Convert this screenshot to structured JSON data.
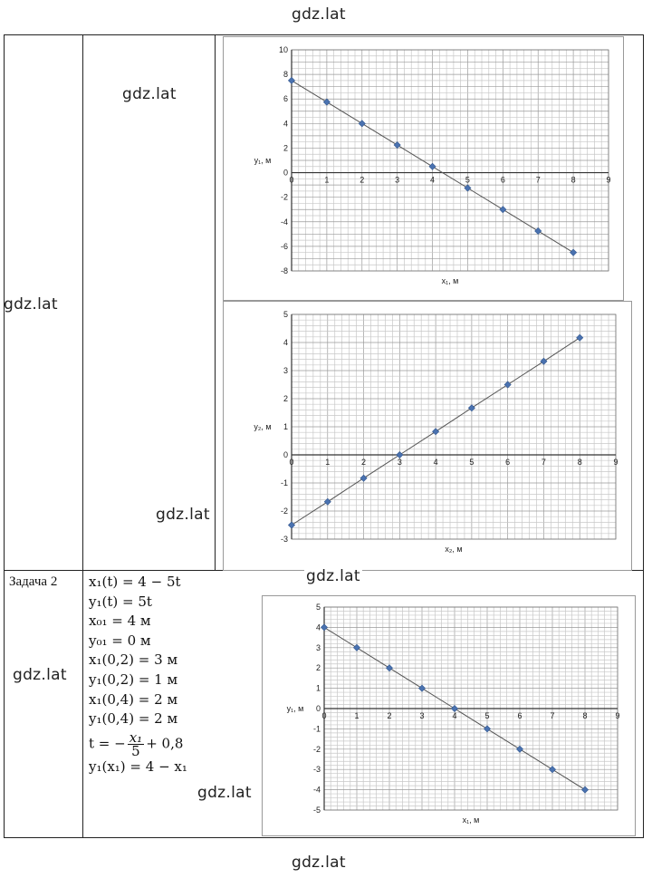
{
  "watermarks": {
    "top": "gdz.lat",
    "bottom": "gdz.lat",
    "r1_col2": "gdz.lat",
    "r1_col1": "gdz.lat",
    "r1_col2b": "gdz.lat",
    "mid": "gdz.lat",
    "r2_col1": "gdz.lat",
    "r2_col2": "gdz.lat"
  },
  "row2": {
    "task_label": "Задача 2",
    "formulas": [
      "x₁(t) = 4 − 5t",
      "y₁(t) = 5t",
      "x₀₁ = 4 м",
      "y₀₁ = 0 м",
      "x₁(0,2) = 3 м",
      "y₁(0,2) = 1 м",
      "x₁(0,4) = 2 м",
      "y₁(0,4) = 2 м"
    ],
    "t_formula": {
      "lhs": "t = −",
      "num": "x₁",
      "den": "5",
      "rhs": "+ 0,8"
    },
    "last_formula": "y₁(x₁) = 4 − x₁"
  },
  "chart_data": [
    {
      "type": "line",
      "xlabel": "x₁, м",
      "ylabel": "y₁, м",
      "xlim": [
        0,
        9
      ],
      "ylim": [
        -8,
        10
      ],
      "xticks": [
        0,
        1,
        2,
        3,
        4,
        5,
        6,
        7,
        8,
        9
      ],
      "yticks": [
        -8,
        -6,
        -4,
        -2,
        0,
        2,
        4,
        6,
        8,
        10
      ],
      "grid": true,
      "series": [
        {
          "x": [
            0,
            1,
            2,
            3,
            4,
            5,
            6,
            7,
            8
          ],
          "y": [
            7.5,
            5.75,
            4,
            2.25,
            0.5,
            -1.25,
            -3,
            -4.75,
            -6.5
          ]
        }
      ]
    },
    {
      "type": "line",
      "xlabel": "x₂, м",
      "ylabel": "y₂, м",
      "xlim": [
        0,
        9
      ],
      "ylim": [
        -3,
        5
      ],
      "xticks": [
        0,
        1,
        2,
        3,
        4,
        5,
        6,
        7,
        8,
        9
      ],
      "yticks": [
        -3,
        -2,
        -1,
        0,
        1,
        2,
        3,
        4,
        5
      ],
      "grid": true,
      "series": [
        {
          "x": [
            0,
            1,
            2,
            3,
            4,
            5,
            6,
            7,
            8
          ],
          "y": [
            -2.5,
            -1.67,
            -0.83,
            0,
            0.83,
            1.67,
            2.5,
            3.33,
            4.17
          ]
        }
      ]
    },
    {
      "type": "line",
      "xlabel": "x₁, м",
      "ylabel": "y₁, м",
      "xlim": [
        0,
        9
      ],
      "ylim": [
        -5,
        5
      ],
      "xticks": [
        0,
        1,
        2,
        3,
        4,
        5,
        6,
        7,
        8,
        9
      ],
      "yticks": [
        -5,
        -4,
        -3,
        -2,
        -1,
        0,
        1,
        2,
        3,
        4,
        5
      ],
      "grid": true,
      "series": [
        {
          "x": [
            0,
            1,
            2,
            3,
            4,
            5,
            6,
            7,
            8
          ],
          "y": [
            4,
            3,
            2,
            1,
            0,
            -1,
            -2,
            -3,
            -4
          ]
        }
      ]
    }
  ]
}
